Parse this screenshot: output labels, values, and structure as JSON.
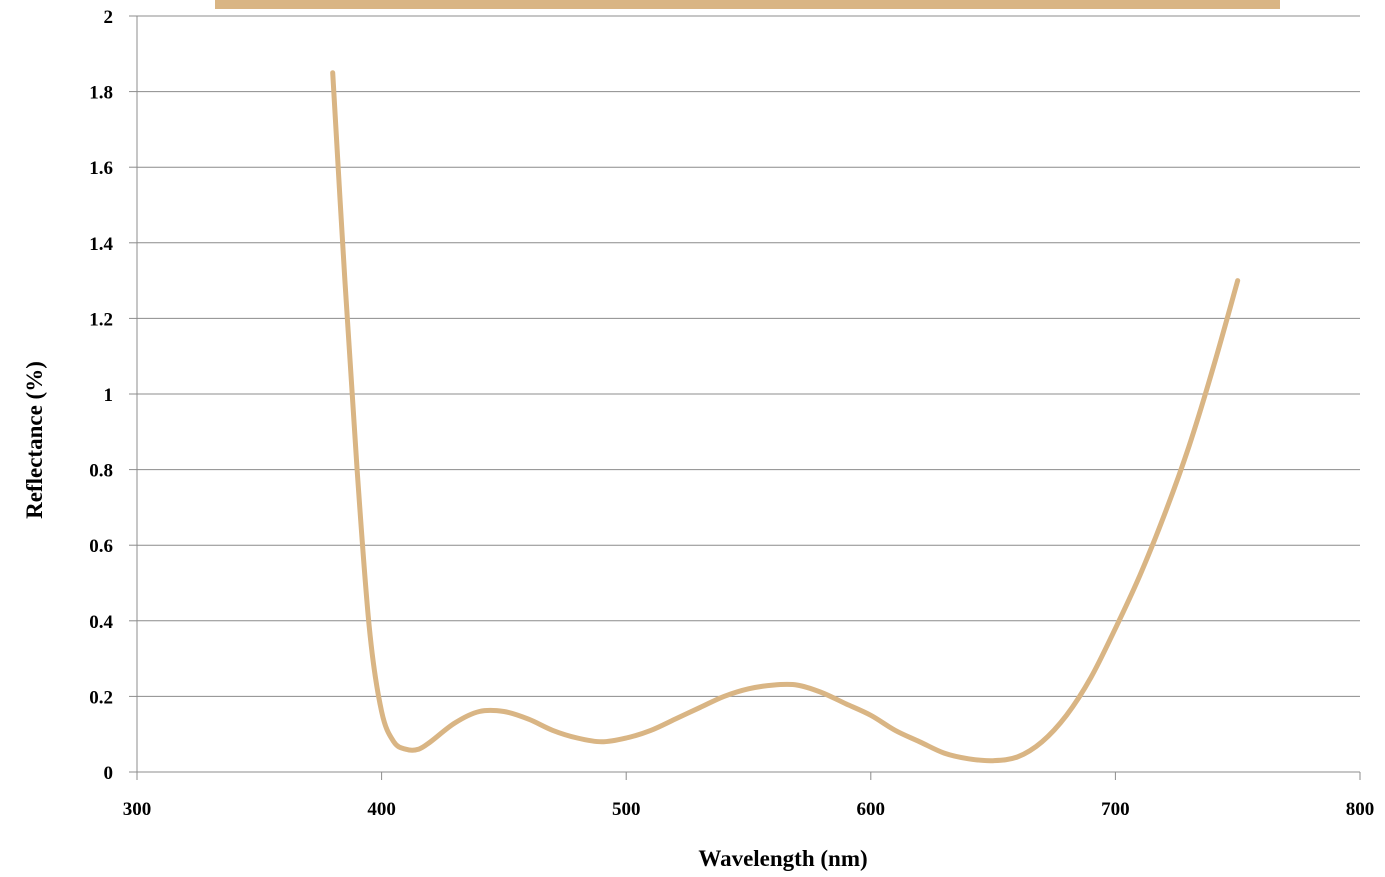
{
  "chart_data": {
    "type": "line",
    "title": "",
    "xlabel": "Wavelength (nm)",
    "ylabel": "Reflectance (%)",
    "xlim": [
      300,
      800
    ],
    "ylim": [
      0,
      2
    ],
    "x_ticks": [
      "300",
      "400",
      "500",
      "600",
      "700",
      "800"
    ],
    "y_ticks": [
      "0",
      "0.2",
      "0.4",
      "0.6",
      "0.8",
      "1",
      "1.2",
      "1.4",
      "1.6",
      "1.8",
      "2"
    ],
    "grid": "horizontal",
    "legend": "top",
    "series": [
      {
        "color": "#d9b584",
        "x": [
          380,
          385,
          390,
          395,
          400,
          405,
          410,
          415,
          420,
          430,
          440,
          450,
          460,
          470,
          480,
          490,
          500,
          510,
          520,
          530,
          540,
          550,
          560,
          570,
          580,
          590,
          600,
          610,
          620,
          630,
          640,
          650,
          660,
          670,
          680,
          690,
          700,
          710,
          720,
          730,
          740,
          750
        ],
        "y": [
          1.85,
          1.3,
          0.8,
          0.38,
          0.16,
          0.08,
          0.06,
          0.06,
          0.08,
          0.13,
          0.16,
          0.16,
          0.14,
          0.11,
          0.09,
          0.08,
          0.09,
          0.11,
          0.14,
          0.17,
          0.2,
          0.22,
          0.23,
          0.23,
          0.21,
          0.18,
          0.15,
          0.11,
          0.08,
          0.05,
          0.035,
          0.03,
          0.04,
          0.08,
          0.15,
          0.25,
          0.38,
          0.52,
          0.68,
          0.86,
          1.07,
          1.3
        ]
      }
    ]
  },
  "legend_color": "#d9b584"
}
